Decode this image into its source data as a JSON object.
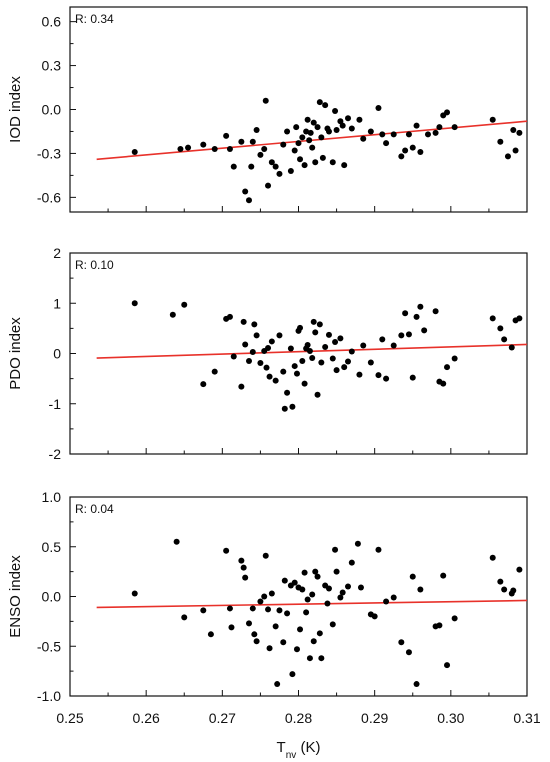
{
  "chart_data": [
    {
      "type": "scatter",
      "ylabel": "IOD index",
      "annotation": "R: 0.34",
      "xlim": [
        0.25,
        0.31
      ],
      "ylim": [
        -0.7,
        0.7
      ],
      "yticks": [
        0.6,
        0.3,
        0.0,
        -0.3,
        -0.6
      ],
      "ytick_labels": [
        "0.6",
        "0.3",
        "0.0",
        "-0.3",
        "-0.6"
      ],
      "fit_line": {
        "color": "#e8312a",
        "x": [
          0.2535,
          0.31
        ],
        "y": [
          -0.34,
          -0.08
        ]
      },
      "points": [
        [
          0.2585,
          -0.29
        ],
        [
          0.2645,
          -0.27
        ],
        [
          0.2655,
          -0.26
        ],
        [
          0.2675,
          -0.24
        ],
        [
          0.269,
          -0.27
        ],
        [
          0.2705,
          -0.18
        ],
        [
          0.271,
          -0.27
        ],
        [
          0.2715,
          -0.39
        ],
        [
          0.2725,
          -0.22
        ],
        [
          0.273,
          -0.56
        ],
        [
          0.2735,
          -0.62
        ],
        [
          0.2738,
          -0.39
        ],
        [
          0.274,
          -0.22
        ],
        [
          0.2745,
          -0.14
        ],
        [
          0.275,
          -0.31
        ],
        [
          0.2755,
          -0.27
        ],
        [
          0.2757,
          0.06
        ],
        [
          0.276,
          -0.52
        ],
        [
          0.2765,
          -0.36
        ],
        [
          0.277,
          -0.39
        ],
        [
          0.2775,
          -0.44
        ],
        [
          0.278,
          -0.24
        ],
        [
          0.2785,
          -0.15
        ],
        [
          0.279,
          -0.42
        ],
        [
          0.2795,
          -0.28
        ],
        [
          0.2797,
          -0.12
        ],
        [
          0.28,
          -0.23
        ],
        [
          0.2802,
          -0.34
        ],
        [
          0.2805,
          -0.19
        ],
        [
          0.2808,
          -0.38
        ],
        [
          0.281,
          -0.15
        ],
        [
          0.2812,
          -0.07
        ],
        [
          0.2814,
          -0.21
        ],
        [
          0.2816,
          -0.16
        ],
        [
          0.2818,
          -0.26
        ],
        [
          0.282,
          -0.09
        ],
        [
          0.2822,
          -0.36
        ],
        [
          0.2825,
          -0.12
        ],
        [
          0.2828,
          0.05
        ],
        [
          0.283,
          -0.19
        ],
        [
          0.2832,
          -0.33
        ],
        [
          0.2835,
          0.03
        ],
        [
          0.2838,
          -0.13
        ],
        [
          0.284,
          -0.15
        ],
        [
          0.2845,
          -0.36
        ],
        [
          0.2848,
          -0.01
        ],
        [
          0.285,
          -0.14
        ],
        [
          0.2855,
          -0.08
        ],
        [
          0.2858,
          -0.11
        ],
        [
          0.286,
          -0.38
        ],
        [
          0.2865,
          -0.06
        ],
        [
          0.287,
          -0.13
        ],
        [
          0.288,
          -0.07
        ],
        [
          0.2885,
          -0.2
        ],
        [
          0.2895,
          -0.15
        ],
        [
          0.2905,
          0.01
        ],
        [
          0.291,
          -0.17
        ],
        [
          0.2915,
          -0.23
        ],
        [
          0.2925,
          -0.17
        ],
        [
          0.2935,
          -0.32
        ],
        [
          0.294,
          -0.28
        ],
        [
          0.2945,
          -0.17
        ],
        [
          0.295,
          -0.26
        ],
        [
          0.2955,
          -0.11
        ],
        [
          0.296,
          -0.29
        ],
        [
          0.297,
          -0.17
        ],
        [
          0.298,
          -0.16
        ],
        [
          0.2985,
          -0.12
        ],
        [
          0.299,
          -0.04
        ],
        [
          0.2995,
          -0.02
        ],
        [
          0.3005,
          -0.12
        ],
        [
          0.3055,
          -0.07
        ],
        [
          0.3065,
          -0.22
        ],
        [
          0.3075,
          -0.32
        ],
        [
          0.3082,
          -0.14
        ],
        [
          0.3085,
          -0.28
        ],
        [
          0.309,
          -0.16
        ]
      ]
    },
    {
      "type": "scatter",
      "ylabel": "PDO index",
      "annotation": "R: 0.10",
      "xlim": [
        0.25,
        0.31
      ],
      "ylim": [
        -2,
        2
      ],
      "yticks": [
        2,
        1,
        0,
        -1,
        -2
      ],
      "ytick_labels": [
        "2",
        "1",
        "0",
        "-1",
        "-2"
      ],
      "fit_line": {
        "color": "#e8312a",
        "x": [
          0.2535,
          0.31
        ],
        "y": [
          -0.09,
          0.18
        ]
      },
      "points": [
        [
          0.2585,
          1.0
        ],
        [
          0.2635,
          0.77
        ],
        [
          0.265,
          0.97
        ],
        [
          0.2675,
          -0.61
        ],
        [
          0.269,
          -0.36
        ],
        [
          0.2705,
          0.69
        ],
        [
          0.271,
          0.73
        ],
        [
          0.2715,
          -0.06
        ],
        [
          0.2725,
          -0.66
        ],
        [
          0.2728,
          0.63
        ],
        [
          0.273,
          0.18
        ],
        [
          0.2735,
          -0.15
        ],
        [
          0.274,
          0.03
        ],
        [
          0.2742,
          0.58
        ],
        [
          0.2745,
          0.36
        ],
        [
          0.275,
          -0.19
        ],
        [
          0.2755,
          0.05
        ],
        [
          0.2758,
          -0.28
        ],
        [
          0.276,
          0.11
        ],
        [
          0.2762,
          -0.46
        ],
        [
          0.2765,
          0.24
        ],
        [
          0.277,
          -0.54
        ],
        [
          0.2775,
          0.36
        ],
        [
          0.278,
          -0.36
        ],
        [
          0.2782,
          -1.1
        ],
        [
          0.2785,
          -0.78
        ],
        [
          0.279,
          0.1
        ],
        [
          0.2792,
          -1.06
        ],
        [
          0.2795,
          -0.25
        ],
        [
          0.2798,
          -0.4
        ],
        [
          0.28,
          0.45
        ],
        [
          0.2802,
          0.51
        ],
        [
          0.2805,
          -0.15
        ],
        [
          0.2808,
          -0.6
        ],
        [
          0.281,
          0.1
        ],
        [
          0.2812,
          0.17
        ],
        [
          0.2815,
          0.05
        ],
        [
          0.2818,
          -0.09
        ],
        [
          0.282,
          0.63
        ],
        [
          0.2822,
          0.42
        ],
        [
          0.2825,
          -0.82
        ],
        [
          0.2828,
          0.58
        ],
        [
          0.283,
          -0.18
        ],
        [
          0.2835,
          0.13
        ],
        [
          0.284,
          0.37
        ],
        [
          0.2845,
          -0.1
        ],
        [
          0.2848,
          0.23
        ],
        [
          0.285,
          -0.33
        ],
        [
          0.2855,
          0.3
        ],
        [
          0.286,
          -0.27
        ],
        [
          0.2865,
          -0.16
        ],
        [
          0.287,
          0.04
        ],
        [
          0.288,
          -0.42
        ],
        [
          0.2885,
          0.16
        ],
        [
          0.2895,
          -0.18
        ],
        [
          0.2905,
          -0.43
        ],
        [
          0.291,
          0.28
        ],
        [
          0.2915,
          -0.5
        ],
        [
          0.2925,
          0.16
        ],
        [
          0.2935,
          0.36
        ],
        [
          0.294,
          0.8
        ],
        [
          0.2945,
          0.38
        ],
        [
          0.295,
          -0.48
        ],
        [
          0.2955,
          0.73
        ],
        [
          0.296,
          0.93
        ],
        [
          0.2965,
          0.46
        ],
        [
          0.298,
          0.84
        ],
        [
          0.2985,
          -0.56
        ],
        [
          0.299,
          -0.6
        ],
        [
          0.2995,
          -0.27
        ],
        [
          0.3005,
          -0.1
        ],
        [
          0.3055,
          0.7
        ],
        [
          0.3065,
          0.5
        ],
        [
          0.307,
          0.28
        ],
        [
          0.308,
          0.12
        ],
        [
          0.3085,
          0.66
        ],
        [
          0.309,
          0.7
        ]
      ]
    },
    {
      "type": "scatter",
      "ylabel": "ENSO index",
      "xlabel_main": "T",
      "xlabel_sub": "nv",
      "xlabel_unit": " (K)",
      "annotation": "R: 0.04",
      "xlim": [
        0.25,
        0.31
      ],
      "ylim": [
        -1.0,
        1.0
      ],
      "xticks": [
        0.25,
        0.26,
        0.27,
        0.28,
        0.29,
        0.3,
        0.31
      ],
      "xtick_labels": [
        "0.25",
        "0.26",
        "0.27",
        "0.28",
        "0.29",
        "0.30",
        "0.31"
      ],
      "yticks": [
        1.0,
        0.5,
        0.0,
        -0.5,
        -1.0
      ],
      "ytick_labels": [
        "1.0",
        "0.5",
        "0.0",
        "-0.5",
        "-1.0"
      ],
      "fit_line": {
        "color": "#e8312a",
        "x": [
          0.2535,
          0.31
        ],
        "y": [
          -0.11,
          -0.04
        ]
      },
      "points": [
        [
          0.2585,
          0.03
        ],
        [
          0.264,
          0.55
        ],
        [
          0.265,
          -0.21
        ],
        [
          0.2675,
          -0.14
        ],
        [
          0.2685,
          -0.38
        ],
        [
          0.2705,
          0.46
        ],
        [
          0.271,
          -0.12
        ],
        [
          0.2712,
          -0.31
        ],
        [
          0.2725,
          0.36
        ],
        [
          0.2728,
          0.29
        ],
        [
          0.273,
          0.19
        ],
        [
          0.2735,
          -0.27
        ],
        [
          0.274,
          -0.12
        ],
        [
          0.2742,
          -0.38
        ],
        [
          0.2745,
          -0.45
        ],
        [
          0.275,
          -0.05
        ],
        [
          0.2755,
          0.0
        ],
        [
          0.2757,
          0.41
        ],
        [
          0.276,
          -0.13
        ],
        [
          0.2762,
          -0.52
        ],
        [
          0.2765,
          0.03
        ],
        [
          0.277,
          -0.3
        ],
        [
          0.2772,
          -0.88
        ],
        [
          0.2775,
          -0.14
        ],
        [
          0.278,
          -0.46
        ],
        [
          0.2782,
          0.16
        ],
        [
          0.2785,
          -0.17
        ],
        [
          0.279,
          0.11
        ],
        [
          0.2792,
          -0.78
        ],
        [
          0.2795,
          0.14
        ],
        [
          0.2798,
          -0.53
        ],
        [
          0.28,
          0.09
        ],
        [
          0.2802,
          -0.33
        ],
        [
          0.2805,
          0.07
        ],
        [
          0.2808,
          0.24
        ],
        [
          0.281,
          -0.16
        ],
        [
          0.2812,
          -0.03
        ],
        [
          0.2815,
          -0.62
        ],
        [
          0.2818,
          0.02
        ],
        [
          0.282,
          -0.45
        ],
        [
          0.2822,
          0.25
        ],
        [
          0.2825,
          0.2
        ],
        [
          0.2828,
          -0.37
        ],
        [
          0.283,
          -0.62
        ],
        [
          0.2835,
          0.11
        ],
        [
          0.2838,
          -0.07
        ],
        [
          0.284,
          0.08
        ],
        [
          0.2845,
          -0.28
        ],
        [
          0.2848,
          0.47
        ],
        [
          0.285,
          0.25
        ],
        [
          0.2855,
          -0.01
        ],
        [
          0.2858,
          0.04
        ],
        [
          0.2865,
          0.1
        ],
        [
          0.287,
          0.34
        ],
        [
          0.2878,
          0.53
        ],
        [
          0.2882,
          0.09
        ],
        [
          0.2895,
          -0.18
        ],
        [
          0.29,
          -0.2
        ],
        [
          0.2905,
          0.47
        ],
        [
          0.2915,
          -0.05
        ],
        [
          0.2925,
          -0.01
        ],
        [
          0.2935,
          -0.46
        ],
        [
          0.2945,
          -0.56
        ],
        [
          0.295,
          0.2
        ],
        [
          0.2955,
          -0.88
        ],
        [
          0.296,
          0.07
        ],
        [
          0.298,
          -0.3
        ],
        [
          0.2985,
          -0.29
        ],
        [
          0.299,
          0.21
        ],
        [
          0.2995,
          -0.69
        ],
        [
          0.3005,
          -0.22
        ],
        [
          0.3055,
          0.39
        ],
        [
          0.3065,
          0.15
        ],
        [
          0.307,
          0.07
        ],
        [
          0.308,
          0.03
        ],
        [
          0.3082,
          0.06
        ],
        [
          0.309,
          0.27
        ]
      ]
    }
  ]
}
